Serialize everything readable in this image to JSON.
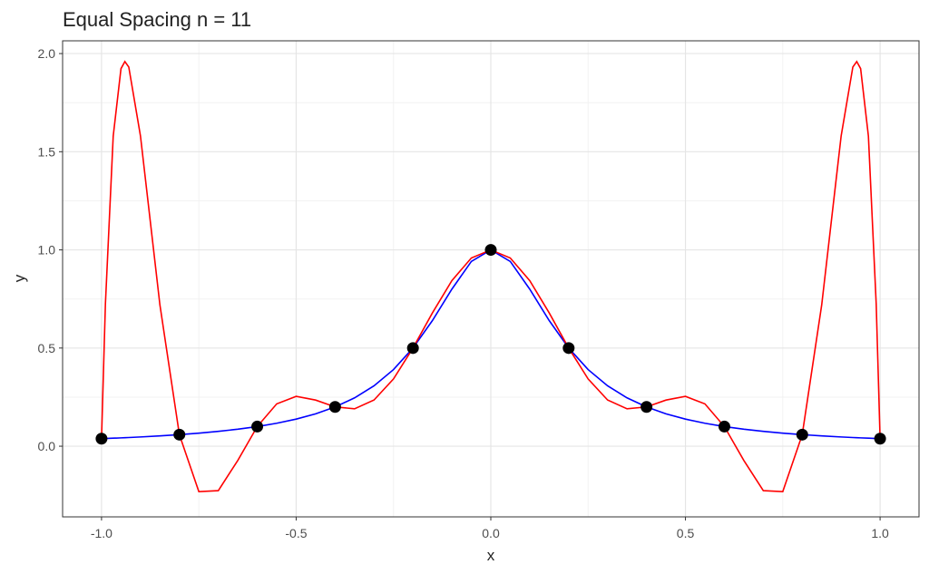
{
  "chart_data": {
    "type": "line",
    "title": "Equal Spacing n = 11",
    "x_label": "x",
    "y_label": "y",
    "xlim": [
      -1.1,
      1.1
    ],
    "ylim": [
      -0.36,
      2.065
    ],
    "xticks": [
      {
        "value": -1,
        "label": "-1.0"
      },
      -0.5,
      {
        "value": 0,
        "label": "0.0"
      },
      0.5,
      {
        "value": 1,
        "label": "1.0"
      }
    ],
    "yticks": [
      {
        "value": 0,
        "label": "0.0"
      },
      0.5,
      {
        "value": 1,
        "label": "1.0"
      },
      1.5,
      {
        "value": 2,
        "label": "2.0"
      }
    ],
    "grid": true,
    "series": [
      {
        "color": "#0000ff",
        "x": [
          -1,
          -0.99,
          -0.97,
          -0.95,
          -0.94,
          -0.93,
          -0.9,
          -0.85,
          -0.8,
          -0.75,
          -0.7,
          -0.65,
          -0.6,
          -0.55,
          -0.5,
          -0.45,
          -0.4,
          -0.35,
          -0.3,
          -0.25,
          -0.2,
          -0.15,
          -0.1,
          -0.05,
          0,
          0.05,
          0.1,
          0.15,
          0.2,
          0.25,
          0.3,
          0.35,
          0.4,
          0.45,
          0.5,
          0.55,
          0.6,
          0.65,
          0.7,
          0.75,
          0.8,
          0.85,
          0.9,
          0.93,
          0.94,
          0.95,
          0.97,
          0.99,
          1
        ],
        "values": [
          0.0385,
          0.0392,
          0.0408,
          0.0424,
          0.0433,
          0.0442,
          0.0471,
          0.0525,
          0.0588,
          0.0664,
          0.0755,
          0.0865,
          0.1,
          0.1168,
          0.1379,
          0.1647,
          0.2,
          0.2462,
          0.3077,
          0.3902,
          0.5,
          0.64,
          0.8,
          0.9412,
          1,
          0.9412,
          0.8,
          0.64,
          0.5,
          0.3902,
          0.3077,
          0.2462,
          0.2,
          0.1647,
          0.1379,
          0.1168,
          0.1,
          0.0865,
          0.0755,
          0.0664,
          0.0588,
          0.0525,
          0.0471,
          0.0442,
          0.0433,
          0.0424,
          0.0408,
          0.0392,
          0.0385
        ]
      },
      {
        "color": "#ff0000",
        "x": [
          -1,
          -0.99,
          -0.97,
          -0.95,
          -0.94,
          -0.93,
          -0.9,
          -0.85,
          -0.8,
          -0.75,
          -0.7,
          -0.65,
          -0.6,
          -0.55,
          -0.5,
          -0.45,
          -0.4,
          -0.35,
          -0.3,
          -0.25,
          -0.2,
          -0.15,
          -0.1,
          -0.05,
          0,
          0.05,
          0.1,
          0.15,
          0.2,
          0.25,
          0.3,
          0.35,
          0.4,
          0.45,
          0.5,
          0.55,
          0.6,
          0.65,
          0.7,
          0.75,
          0.8,
          0.85,
          0.9,
          0.93,
          0.94,
          0.95,
          0.97,
          0.99,
          1
        ],
        "values": [
          0.0385,
          0.7253,
          1.5792,
          1.9233,
          1.9592,
          1.9314,
          1.5809,
          0.7195,
          0.0588,
          -0.2315,
          -0.2263,
          -0.0726,
          0.1,
          0.2157,
          0.2538,
          0.235,
          0.2,
          0.1906,
          0.2353,
          0.3426,
          0.5,
          0.679,
          0.8434,
          0.9586,
          1,
          0.9586,
          0.8434,
          0.679,
          0.5,
          0.3426,
          0.2353,
          0.1906,
          0.2,
          0.235,
          0.2538,
          0.2157,
          0.1,
          -0.0726,
          -0.2263,
          -0.2315,
          0.0588,
          0.7195,
          1.5809,
          1.9314,
          1.9592,
          1.9233,
          1.5792,
          0.7253,
          0.0385
        ]
      },
      {
        "type": "scatter",
        "color": "#000000",
        "x": [
          -1,
          -0.8,
          -0.6,
          -0.4,
          -0.2,
          0,
          0.2,
          0.4,
          0.6,
          0.8,
          1
        ],
        "values": [
          0.0385,
          0.0588,
          0.1,
          0.2,
          0.5,
          1,
          0.5,
          0.2,
          0.1,
          0.0588,
          0.0385
        ]
      }
    ]
  }
}
